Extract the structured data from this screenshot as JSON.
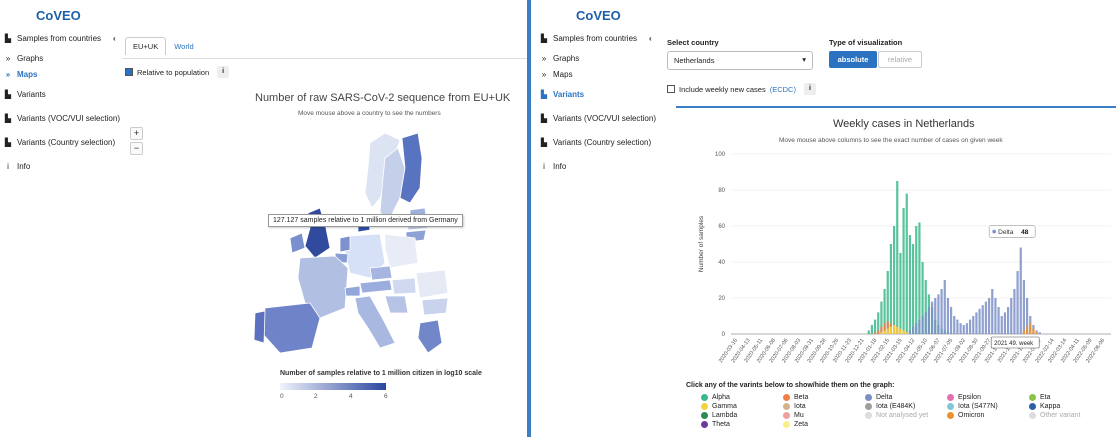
{
  "left": {
    "logo": "CoVEO",
    "nav": [
      {
        "label": "Samples from countries",
        "icon": "map-icon",
        "collapse": "‹"
      },
      {
        "label": "Graphs",
        "icon": "double-chevron-icon"
      },
      {
        "label": "Maps",
        "icon": "double-chevron-icon",
        "active": true
      },
      {
        "label": "Variants",
        "icon": "bar-chart-icon"
      },
      {
        "label": "Variants (VOC/VUI selection)",
        "icon": "bar-chart-icon"
      },
      {
        "label": "Variants (Country selection)",
        "icon": "bar-chart-icon"
      },
      {
        "label": "Info",
        "icon": "info-icon"
      }
    ],
    "tabs": [
      "EU+UK",
      "World"
    ],
    "relative_label": "Relative to population",
    "map_title": "Number of raw SARS-CoV-2 sequence from EU+UK",
    "map_subtitle": "Move mouse above a country to see the numbers",
    "zoom_in": "+",
    "zoom_out": "−",
    "tooltip": "127.127 samples relative to 1 million derived from Germany",
    "scale_title": "Number of samples relative to 1 million citizen in log10 scale",
    "scale_ticks": [
      "0",
      "2",
      "4",
      "6"
    ]
  },
  "right": {
    "logo": "CoVEO",
    "nav": [
      {
        "label": "Samples from countries",
        "icon": "map-icon",
        "collapse": "‹"
      },
      {
        "label": "Graphs",
        "icon": "double-chevron-icon"
      },
      {
        "label": "Maps",
        "icon": "double-chevron-icon"
      },
      {
        "label": "Variants",
        "icon": "bar-chart-icon",
        "active": true
      },
      {
        "label": "Variants (VOC/VUI selection)",
        "icon": "bar-chart-icon"
      },
      {
        "label": "Variants (Country selection)",
        "icon": "bar-chart-icon"
      },
      {
        "label": "Info",
        "icon": "info-icon"
      }
    ],
    "select_country_label": "Select country",
    "country_value": "Netherlands",
    "viz_label": "Type of visualization",
    "viz_absolute": "absolute",
    "viz_relative": "relative",
    "weekly_cases_label": "Include weekly new cases",
    "weekly_cases_link": "(ECDC)",
    "legend_hint": "Click any of the varints below to show/hide them on the graph:"
  },
  "chart_data": {
    "type": "bar",
    "title": "Weekly cases in Netherlands",
    "subtitle": "Move mouse above columns to see the exact number of cases on given week",
    "ylabel": "Number of samples",
    "ylim": [
      0,
      100
    ],
    "yticks": [
      0,
      20,
      40,
      60,
      80,
      100
    ],
    "x_tick_labels": [
      "2020-03-16",
      "2020-04-13",
      "2020-05-11",
      "2020-06-08",
      "2020-07-06",
      "2020-08-03",
      "2020-08-31",
      "2020-09-28",
      "2020-10-26",
      "2020-11-23",
      "2020-12-21",
      "2021-01-18",
      "2021-02-15",
      "2021-03-15",
      "2021-04-12",
      "2021-05-10",
      "2021-06-07",
      "2021-07-05",
      "2021-08-02",
      "2021-08-30",
      "2021-09-27",
      "2021-10-25",
      "2021-11-22",
      "2021-12-20",
      "2022-01-17",
      "2022-02-14",
      "2022-03-14",
      "2022-04-11",
      "2022-05-09",
      "2022-06-06"
    ],
    "tooltip_series": "Delta",
    "tooltip_value": "48",
    "tooltip_week": "2021 49. week",
    "series": [
      {
        "name": "Alpha",
        "color": "#3cb98a",
        "values": [
          0,
          0,
          0,
          0,
          0,
          0,
          0,
          0,
          0,
          0,
          0,
          0,
          0,
          0,
          0,
          0,
          0,
          0,
          0,
          0,
          0,
          0,
          0,
          0,
          0,
          0,
          0,
          0,
          0,
          0,
          0,
          0,
          0,
          0,
          0,
          0,
          0,
          0,
          0,
          0,
          0,
          0,
          0,
          2,
          5,
          8,
          12,
          18,
          25,
          35,
          50,
          60,
          85,
          45,
          70,
          78,
          55,
          50,
          60,
          62,
          40,
          30,
          22,
          15,
          8,
          5,
          3,
          2,
          1,
          0,
          0,
          0,
          0,
          0,
          0,
          0,
          0,
          0,
          0,
          0,
          0,
          0,
          0,
          0,
          0,
          0,
          0,
          0,
          0,
          0,
          0,
          0,
          0,
          0,
          0,
          0,
          0,
          0,
          0,
          0,
          0,
          0,
          0,
          0,
          0,
          0,
          0,
          0,
          0,
          0,
          0,
          0,
          0,
          0,
          0,
          0,
          0,
          0,
          0,
          0
        ]
      },
      {
        "name": "Beta",
        "color": "#f07f4a",
        "values": [
          0,
          0,
          0,
          0,
          0,
          0,
          0,
          0,
          0,
          0,
          0,
          0,
          0,
          0,
          0,
          0,
          0,
          0,
          0,
          0,
          0,
          0,
          0,
          0,
          0,
          0,
          0,
          0,
          0,
          0,
          0,
          0,
          0,
          0,
          0,
          0,
          0,
          0,
          0,
          0,
          0,
          0,
          0,
          0,
          0,
          1,
          2,
          4,
          6,
          7,
          6,
          5,
          4,
          3,
          2,
          1,
          0,
          0,
          0,
          0,
          0,
          0,
          0,
          0,
          0,
          0,
          0,
          0,
          0,
          0,
          0,
          0,
          0,
          0,
          0,
          0,
          0,
          0,
          0,
          0,
          0,
          0,
          0,
          0,
          0,
          0,
          0,
          0,
          0,
          0,
          0,
          0,
          0,
          0,
          0,
          0,
          0,
          0,
          0,
          0,
          0,
          0,
          0,
          0,
          0,
          0,
          0,
          0,
          0,
          0,
          0,
          0,
          0,
          0,
          0,
          0,
          0,
          0,
          0,
          0
        ]
      },
      {
        "name": "Gamma",
        "color": "#f4d33a",
        "values": [
          0,
          0,
          0,
          0,
          0,
          0,
          0,
          0,
          0,
          0,
          0,
          0,
          0,
          0,
          0,
          0,
          0,
          0,
          0,
          0,
          0,
          0,
          0,
          0,
          0,
          0,
          0,
          0,
          0,
          0,
          0,
          0,
          0,
          0,
          0,
          0,
          0,
          0,
          0,
          0,
          0,
          0,
          0,
          0,
          0,
          0,
          0,
          1,
          2,
          3,
          4,
          5,
          4,
          3,
          2,
          1,
          0,
          0,
          0,
          0,
          0,
          0,
          0,
          0,
          0,
          0,
          0,
          0,
          0,
          0,
          0,
          0,
          0,
          0,
          0,
          0,
          0,
          0,
          0,
          0,
          0,
          0,
          0,
          0,
          0,
          0,
          0,
          0,
          0,
          0,
          0,
          0,
          0,
          0,
          0,
          0,
          0,
          0,
          0,
          0,
          0,
          0,
          0,
          0,
          0,
          0,
          0,
          0,
          0,
          0,
          0,
          0,
          0,
          0,
          0,
          0,
          0,
          0,
          0,
          0
        ]
      },
      {
        "name": "Delta",
        "color": "#7b8fc7",
        "values": [
          0,
          0,
          0,
          0,
          0,
          0,
          0,
          0,
          0,
          0,
          0,
          0,
          0,
          0,
          0,
          0,
          0,
          0,
          0,
          0,
          0,
          0,
          0,
          0,
          0,
          0,
          0,
          0,
          0,
          0,
          0,
          0,
          0,
          0,
          0,
          0,
          0,
          0,
          0,
          0,
          0,
          0,
          0,
          0,
          0,
          0,
          0,
          0,
          0,
          0,
          0,
          0,
          0,
          0,
          0,
          0,
          2,
          4,
          6,
          8,
          10,
          12,
          15,
          18,
          20,
          22,
          25,
          30,
          20,
          15,
          10,
          8,
          6,
          5,
          6,
          8,
          10,
          12,
          14,
          16,
          18,
          20,
          25,
          20,
          15,
          10,
          12,
          15,
          20,
          25,
          35,
          48,
          30,
          20,
          10,
          5,
          2,
          1,
          0,
          0,
          0,
          0,
          0,
          0,
          0,
          0,
          0,
          0,
          0,
          0,
          0,
          0,
          0,
          0,
          0,
          0,
          0,
          0,
          0,
          0
        ]
      },
      {
        "name": "Omicron",
        "color": "#f0902a",
        "values": [
          0,
          0,
          0,
          0,
          0,
          0,
          0,
          0,
          0,
          0,
          0,
          0,
          0,
          0,
          0,
          0,
          0,
          0,
          0,
          0,
          0,
          0,
          0,
          0,
          0,
          0,
          0,
          0,
          0,
          0,
          0,
          0,
          0,
          0,
          0,
          0,
          0,
          0,
          0,
          0,
          0,
          0,
          0,
          0,
          0,
          0,
          0,
          0,
          0,
          0,
          0,
          0,
          0,
          0,
          0,
          0,
          0,
          0,
          0,
          0,
          0,
          0,
          0,
          0,
          0,
          0,
          0,
          0,
          0,
          0,
          0,
          0,
          0,
          0,
          0,
          0,
          0,
          0,
          0,
          0,
          0,
          0,
          0,
          0,
          0,
          0,
          0,
          0,
          0,
          0,
          0,
          0,
          2,
          4,
          6,
          3,
          1,
          0,
          0,
          0,
          0,
          0,
          0,
          0,
          0,
          0,
          0,
          0,
          0,
          0,
          0,
          0,
          0,
          0,
          0,
          0,
          0,
          0,
          0,
          0
        ]
      }
    ],
    "legend": [
      {
        "name": "Alpha",
        "color": "#3cb98a"
      },
      {
        "name": "Beta",
        "color": "#f07f4a"
      },
      {
        "name": "Delta",
        "color": "#7b8fc7"
      },
      {
        "name": "Epsilon",
        "color": "#e66fb0"
      },
      {
        "name": "Eta",
        "color": "#8bc34a"
      },
      {
        "name": "Gamma",
        "color": "#f4d33a"
      },
      {
        "name": "Iota",
        "color": "#d4b38a"
      },
      {
        "name": "Iota (E484K)",
        "color": "#9e9e9e"
      },
      {
        "name": "Iota (S477N)",
        "color": "#7ec8d8"
      },
      {
        "name": "Kappa",
        "color": "#2b5fa8"
      },
      {
        "name": "Lambda",
        "color": "#2e8b57"
      },
      {
        "name": "Mu",
        "color": "#f0a0a0"
      },
      {
        "name": "Not analysed yet",
        "color": "#dddddd",
        "muted": true
      },
      {
        "name": "Omicron",
        "color": "#f0902a"
      },
      {
        "name": "Other variant",
        "color": "#dddddd",
        "muted": true
      },
      {
        "name": "Theta",
        "color": "#6a3d9a"
      },
      {
        "name": "Zeta",
        "color": "#f7f08a"
      }
    ]
  }
}
